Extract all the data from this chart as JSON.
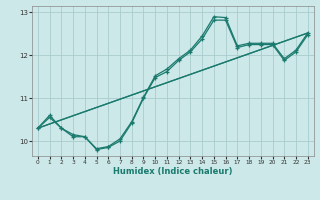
{
  "xlabel": "Humidex (Indice chaleur)",
  "background_color": "#cce8e8",
  "grid_color": "#aacccc",
  "line_color": "#1a7a6e",
  "xlim": [
    -0.5,
    23.5
  ],
  "ylim": [
    9.65,
    13.15
  ],
  "yticks": [
    10,
    11,
    12,
    13
  ],
  "xticks": [
    0,
    1,
    2,
    3,
    4,
    5,
    6,
    7,
    8,
    9,
    10,
    11,
    12,
    13,
    14,
    15,
    16,
    17,
    18,
    19,
    20,
    21,
    22,
    23
  ],
  "series_zigzag1": {
    "x": [
      0,
      1,
      2,
      3,
      4,
      5,
      6,
      7,
      8,
      9,
      10,
      11,
      12,
      13,
      14,
      15,
      16,
      17,
      18,
      19,
      20,
      21,
      22,
      23
    ],
    "y": [
      10.3,
      10.6,
      10.3,
      10.15,
      10.1,
      9.82,
      9.87,
      10.05,
      10.45,
      11.02,
      11.52,
      11.68,
      11.92,
      12.12,
      12.45,
      12.9,
      12.88,
      12.22,
      12.28,
      12.28,
      12.28,
      11.92,
      12.12,
      12.52
    ]
  },
  "series_zigzag2": {
    "x": [
      0,
      1,
      2,
      3,
      4,
      5,
      6,
      7,
      8,
      9,
      10,
      11,
      12,
      13,
      14,
      15,
      16,
      17,
      18,
      19,
      20,
      21,
      22,
      23
    ],
    "y": [
      10.3,
      10.55,
      10.3,
      10.1,
      10.1,
      9.8,
      9.85,
      10.0,
      10.42,
      11.0,
      11.48,
      11.62,
      11.88,
      12.08,
      12.38,
      12.82,
      12.82,
      12.18,
      12.25,
      12.25,
      12.25,
      11.88,
      12.08,
      12.48
    ]
  },
  "trend1": {
    "x": [
      0,
      23
    ],
    "y": [
      10.3,
      12.52
    ]
  },
  "trend2": {
    "x": [
      0,
      23
    ],
    "y": [
      10.3,
      12.52
    ]
  }
}
